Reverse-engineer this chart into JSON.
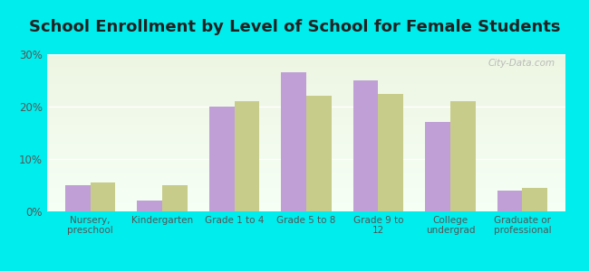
{
  "title": "School Enrollment by Level of School for Female Students",
  "categories": [
    "Nursery,\npreschool",
    "Kindergarten",
    "Grade 1 to 4",
    "Grade 5 to 8",
    "Grade 9 to\n12",
    "College\nundergrad",
    "Graduate or\nprofessional"
  ],
  "trenton": [
    5.0,
    2.0,
    20.0,
    26.5,
    25.0,
    17.0,
    4.0
  ],
  "wisconsin": [
    5.5,
    5.0,
    21.0,
    22.0,
    22.5,
    21.0,
    4.5
  ],
  "trenton_color": "#bf9fd6",
  "wisconsin_color": "#c8cc8a",
  "background_outer": "#00eded",
  "background_inner_top": "#edf5e2",
  "background_inner_bottom": "#f5fff5",
  "ylim": [
    0,
    30
  ],
  "yticks": [
    0,
    10,
    20,
    30
  ],
  "bar_width": 0.35,
  "title_fontsize": 13,
  "watermark": "City-Data.com"
}
